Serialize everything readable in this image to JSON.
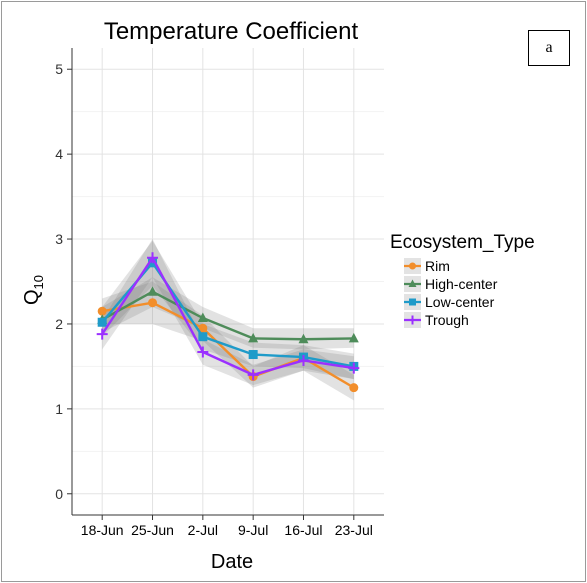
{
  "panel_label": "a",
  "chart_data": {
    "type": "line",
    "title": "Temperature Coefficient",
    "xlabel": "Date",
    "ylabel_base": "Q",
    "ylabel_sub": "10",
    "x": [
      "18-Jun",
      "25-Jun",
      "2-Jul",
      "9-Jul",
      "16-Jul",
      "23-Jul"
    ],
    "ylim": [
      -0.25,
      5.25
    ],
    "yticks": [
      0,
      1,
      2,
      3,
      4,
      5
    ],
    "grid": true,
    "legend_title": "Ecosystem_Type",
    "legend_position": "right",
    "series": [
      {
        "name": "Rim",
        "color": "#F28E2B",
        "marker": "circle",
        "values": [
          2.15,
          2.25,
          1.95,
          1.38,
          1.6,
          1.25
        ],
        "ci": [
          [
            2.0,
            2.3
          ],
          [
            2.0,
            2.5
          ],
          [
            1.8,
            2.1
          ],
          [
            1.25,
            1.5
          ],
          [
            1.45,
            1.75
          ],
          [
            1.1,
            1.4
          ]
        ]
      },
      {
        "name": "High-center",
        "color": "#4E8C5A",
        "marker": "triangle",
        "values": [
          2.05,
          2.38,
          2.07,
          1.83,
          1.82,
          1.83
        ],
        "ci": [
          [
            1.9,
            2.2
          ],
          [
            2.2,
            2.55
          ],
          [
            1.95,
            2.2
          ],
          [
            1.72,
            1.95
          ],
          [
            1.7,
            1.95
          ],
          [
            1.72,
            1.95
          ]
        ]
      },
      {
        "name": "Low-center",
        "color": "#1F9BC9",
        "marker": "square",
        "values": [
          2.02,
          2.72,
          1.85,
          1.64,
          1.61,
          1.5
        ],
        "ci": [
          [
            1.85,
            2.2
          ],
          [
            2.45,
            2.98
          ],
          [
            1.7,
            2.0
          ],
          [
            1.5,
            1.78
          ],
          [
            1.48,
            1.75
          ],
          [
            1.35,
            1.65
          ]
        ]
      },
      {
        "name": "Trough",
        "color": "#9B30FF",
        "marker": "plus",
        "values": [
          1.88,
          2.78,
          1.67,
          1.4,
          1.57,
          1.48
        ],
        "ci": [
          [
            1.7,
            2.05
          ],
          [
            2.55,
            3.0
          ],
          [
            1.52,
            1.82
          ],
          [
            1.28,
            1.52
          ],
          [
            1.45,
            1.7
          ],
          [
            1.35,
            1.62
          ]
        ]
      }
    ]
  }
}
